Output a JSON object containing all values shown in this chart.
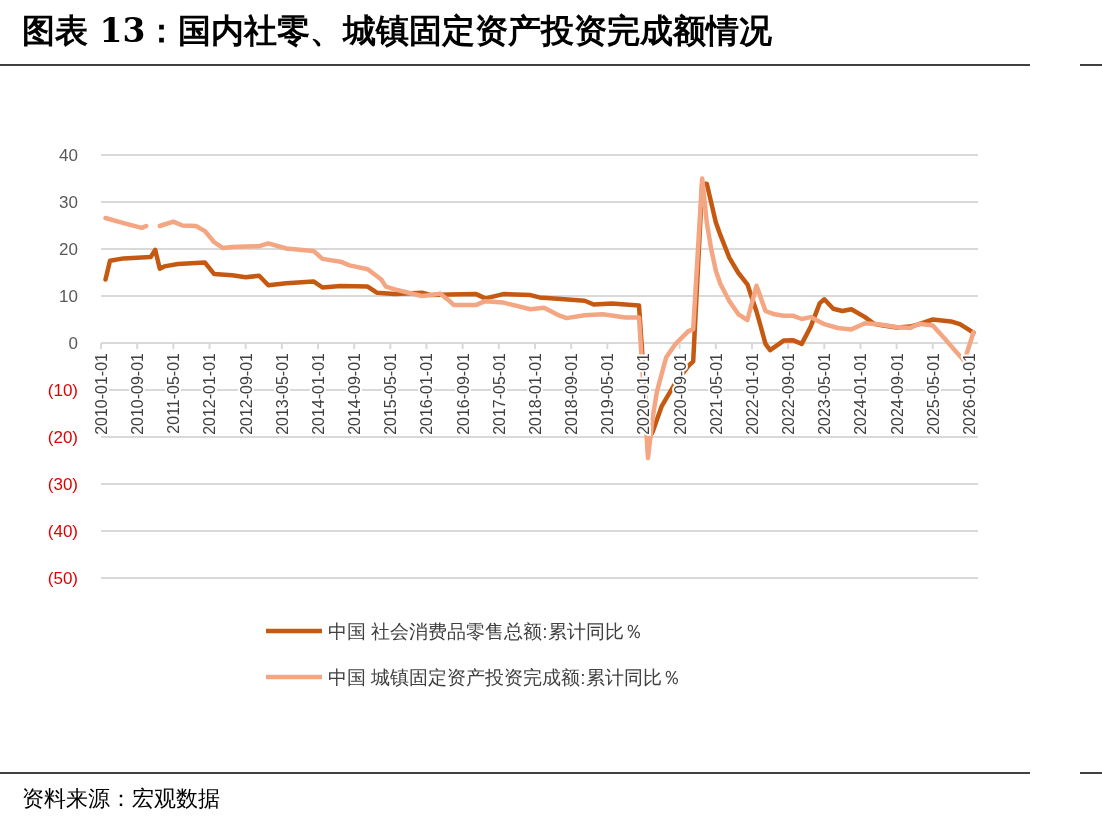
{
  "chart_data": {
    "type": "line",
    "title": "图表 13：国内社零、城镇固定资产投资完成额情况",
    "annotations": [
      "资料来源：宏观数据"
    ],
    "xlim": [
      "2010-01",
      "2026-03"
    ],
    "xticks": [
      "2010-01-01",
      "2010-09-01",
      "2011-05-01",
      "2012-01-01",
      "2012-09-01",
      "2013-05-01",
      "2014-01-01",
      "2014-09-01",
      "2015-05-01",
      "2016-01-01",
      "2016-09-01",
      "2017-05-01",
      "2018-01-01",
      "2018-09-01",
      "2019-05-01",
      "2020-01-01",
      "2020-09-01",
      "2021-05-01",
      "2022-01-01",
      "2022-09-01",
      "2023-05-01",
      "2024-01-01",
      "2024-09-01",
      "2025-05-01",
      "2026-01-01"
    ],
    "ylim": [
      -50,
      40
    ],
    "yticks": [
      40,
      30,
      20,
      10,
      0,
      {
        "value": -10,
        "label": "(10)"
      },
      {
        "value": -20,
        "label": "(20)"
      },
      {
        "value": -30,
        "label": "(30)"
      },
      {
        "value": -40,
        "label": "(40)"
      },
      {
        "value": -50,
        "label": "(50)"
      }
    ],
    "grid": "y",
    "legend": "bottom",
    "line_style": "solid",
    "series": [
      {
        "name": "中国 社会消费品零售总额:累计同比％",
        "color": "#c65911",
        "x": [
          "2010-02",
          "2010-03",
          "2010-06",
          "2010-12",
          "2011-01",
          "2011-02",
          "2011-03",
          "2011-06",
          "2011-12",
          "2012-02",
          "2012-06",
          "2012-09",
          "2012-12",
          "2013-02",
          "2013-06",
          "2013-12",
          "2014-02",
          "2014-06",
          "2014-12",
          "2015-02",
          "2015-06",
          "2015-12",
          "2016-02",
          "2016-06",
          "2016-12",
          "2017-02",
          "2017-06",
          "2017-12",
          "2018-02",
          "2018-06",
          "2018-12",
          "2019-02",
          "2019-06",
          "2019-12",
          "2020-02",
          "2020-03",
          "2020-05",
          "2020-08",
          "2020-11",
          "2020-12",
          "2021-02",
          "2021-03",
          "2021-05",
          "2021-06",
          "2021-08",
          "2021-10",
          "2021-12",
          "2022-02",
          "2022-03",
          "2022-04",
          "2022-05",
          "2022-07",
          "2022-08",
          "2022-10",
          "2022-12",
          "2023-02",
          "2023-04",
          "2023-05",
          "2023-07",
          "2023-09",
          "2023-11",
          "2024-02",
          "2024-04",
          "2024-06",
          "2024-09",
          "2024-12",
          "2025-02",
          "2025-05",
          "2025-09",
          "2025-11",
          "2026-02"
        ],
        "values": [
          13.5,
          17.5,
          18.0,
          18.3,
          19.8,
          15.8,
          16.3,
          16.8,
          17.1,
          14.7,
          14.4,
          14.0,
          14.3,
          12.3,
          12.7,
          13.1,
          11.8,
          12.1,
          12.0,
          10.7,
          10.4,
          10.7,
          10.2,
          10.3,
          10.4,
          9.5,
          10.4,
          10.2,
          9.7,
          9.4,
          9.0,
          8.2,
          8.4,
          8.0,
          -20.5,
          -19.0,
          -13.5,
          -8.6,
          -4.8,
          -3.9,
          33.8,
          33.9,
          25.7,
          23.0,
          18.1,
          14.9,
          12.5,
          6.7,
          3.3,
          -0.2,
          -1.5,
          -0.2,
          0.5,
          0.6,
          -0.2,
          3.5,
          8.5,
          9.3,
          7.3,
          6.8,
          7.2,
          5.5,
          4.1,
          3.7,
          3.3,
          3.5,
          4.0,
          5.0,
          4.6,
          4.0,
          2.2
        ]
      },
      {
        "name": "中国 城镇固定资产投资完成额:累计同比％",
        "color": "#f4a582",
        "x": [
          "2010-02",
          "2010-06",
          "2010-10",
          "2010-11",
          "2011-01",
          "2011-02",
          "2011-05",
          "2011-07",
          "2011-10",
          "2011-12",
          "2012-02",
          "2012-04",
          "2012-06",
          "2012-09",
          "2012-12",
          "2013-02",
          "2013-06",
          "2013-12",
          "2014-02",
          "2014-06",
          "2014-08",
          "2014-12",
          "2015-03",
          "2015-04",
          "2015-06",
          "2015-12",
          "2016-02",
          "2016-04",
          "2016-06",
          "2016-07",
          "2016-12",
          "2017-02",
          "2017-06",
          "2017-12",
          "2018-03",
          "2018-04",
          "2018-06",
          "2018-08",
          "2018-12",
          "2019-04",
          "2019-09",
          "2019-12",
          "2020-02",
          "2020-03",
          "2020-04",
          "2020-06",
          "2020-08",
          "2020-11",
          "2020-12",
          "2021-02",
          "2021-03",
          "2021-04",
          "2021-05",
          "2021-06",
          "2021-08",
          "2021-10",
          "2021-12",
          "2022-02",
          "2022-04",
          "2022-06",
          "2022-08",
          "2022-10",
          "2022-12",
          "2023-02",
          "2023-05",
          "2023-08",
          "2023-11",
          "2024-02",
          "2024-05",
          "2024-09",
          "2024-12",
          "2025-02",
          "2025-05",
          "2025-08",
          "2025-10",
          "2025-12",
          "2026-02"
        ],
        "values": [
          26.6,
          25.5,
          24.5,
          24.9,
          null,
          24.9,
          25.8,
          25.0,
          24.9,
          23.8,
          21.5,
          20.2,
          20.4,
          20.5,
          20.6,
          21.2,
          20.1,
          19.6,
          17.9,
          17.3,
          16.5,
          15.7,
          13.5,
          12.0,
          11.4,
          10.0,
          10.2,
          10.5,
          9.0,
          8.1,
          8.1,
          8.9,
          8.6,
          7.2,
          7.5,
          7.0,
          6.0,
          5.3,
          5.9,
          6.1,
          5.4,
          5.4,
          -24.5,
          -16.1,
          -10.3,
          -3.1,
          -0.3,
          2.6,
          2.9,
          35.0,
          25.6,
          19.9,
          15.4,
          12.6,
          8.9,
          6.1,
          4.9,
          12.2,
          6.8,
          6.1,
          5.8,
          5.8,
          5.1,
          5.5,
          4.0,
          3.2,
          2.9,
          4.2,
          4.0,
          3.4,
          3.2,
          4.1,
          3.7,
          0.5,
          -1.7,
          -3.8,
          2.3
        ]
      }
    ]
  }
}
